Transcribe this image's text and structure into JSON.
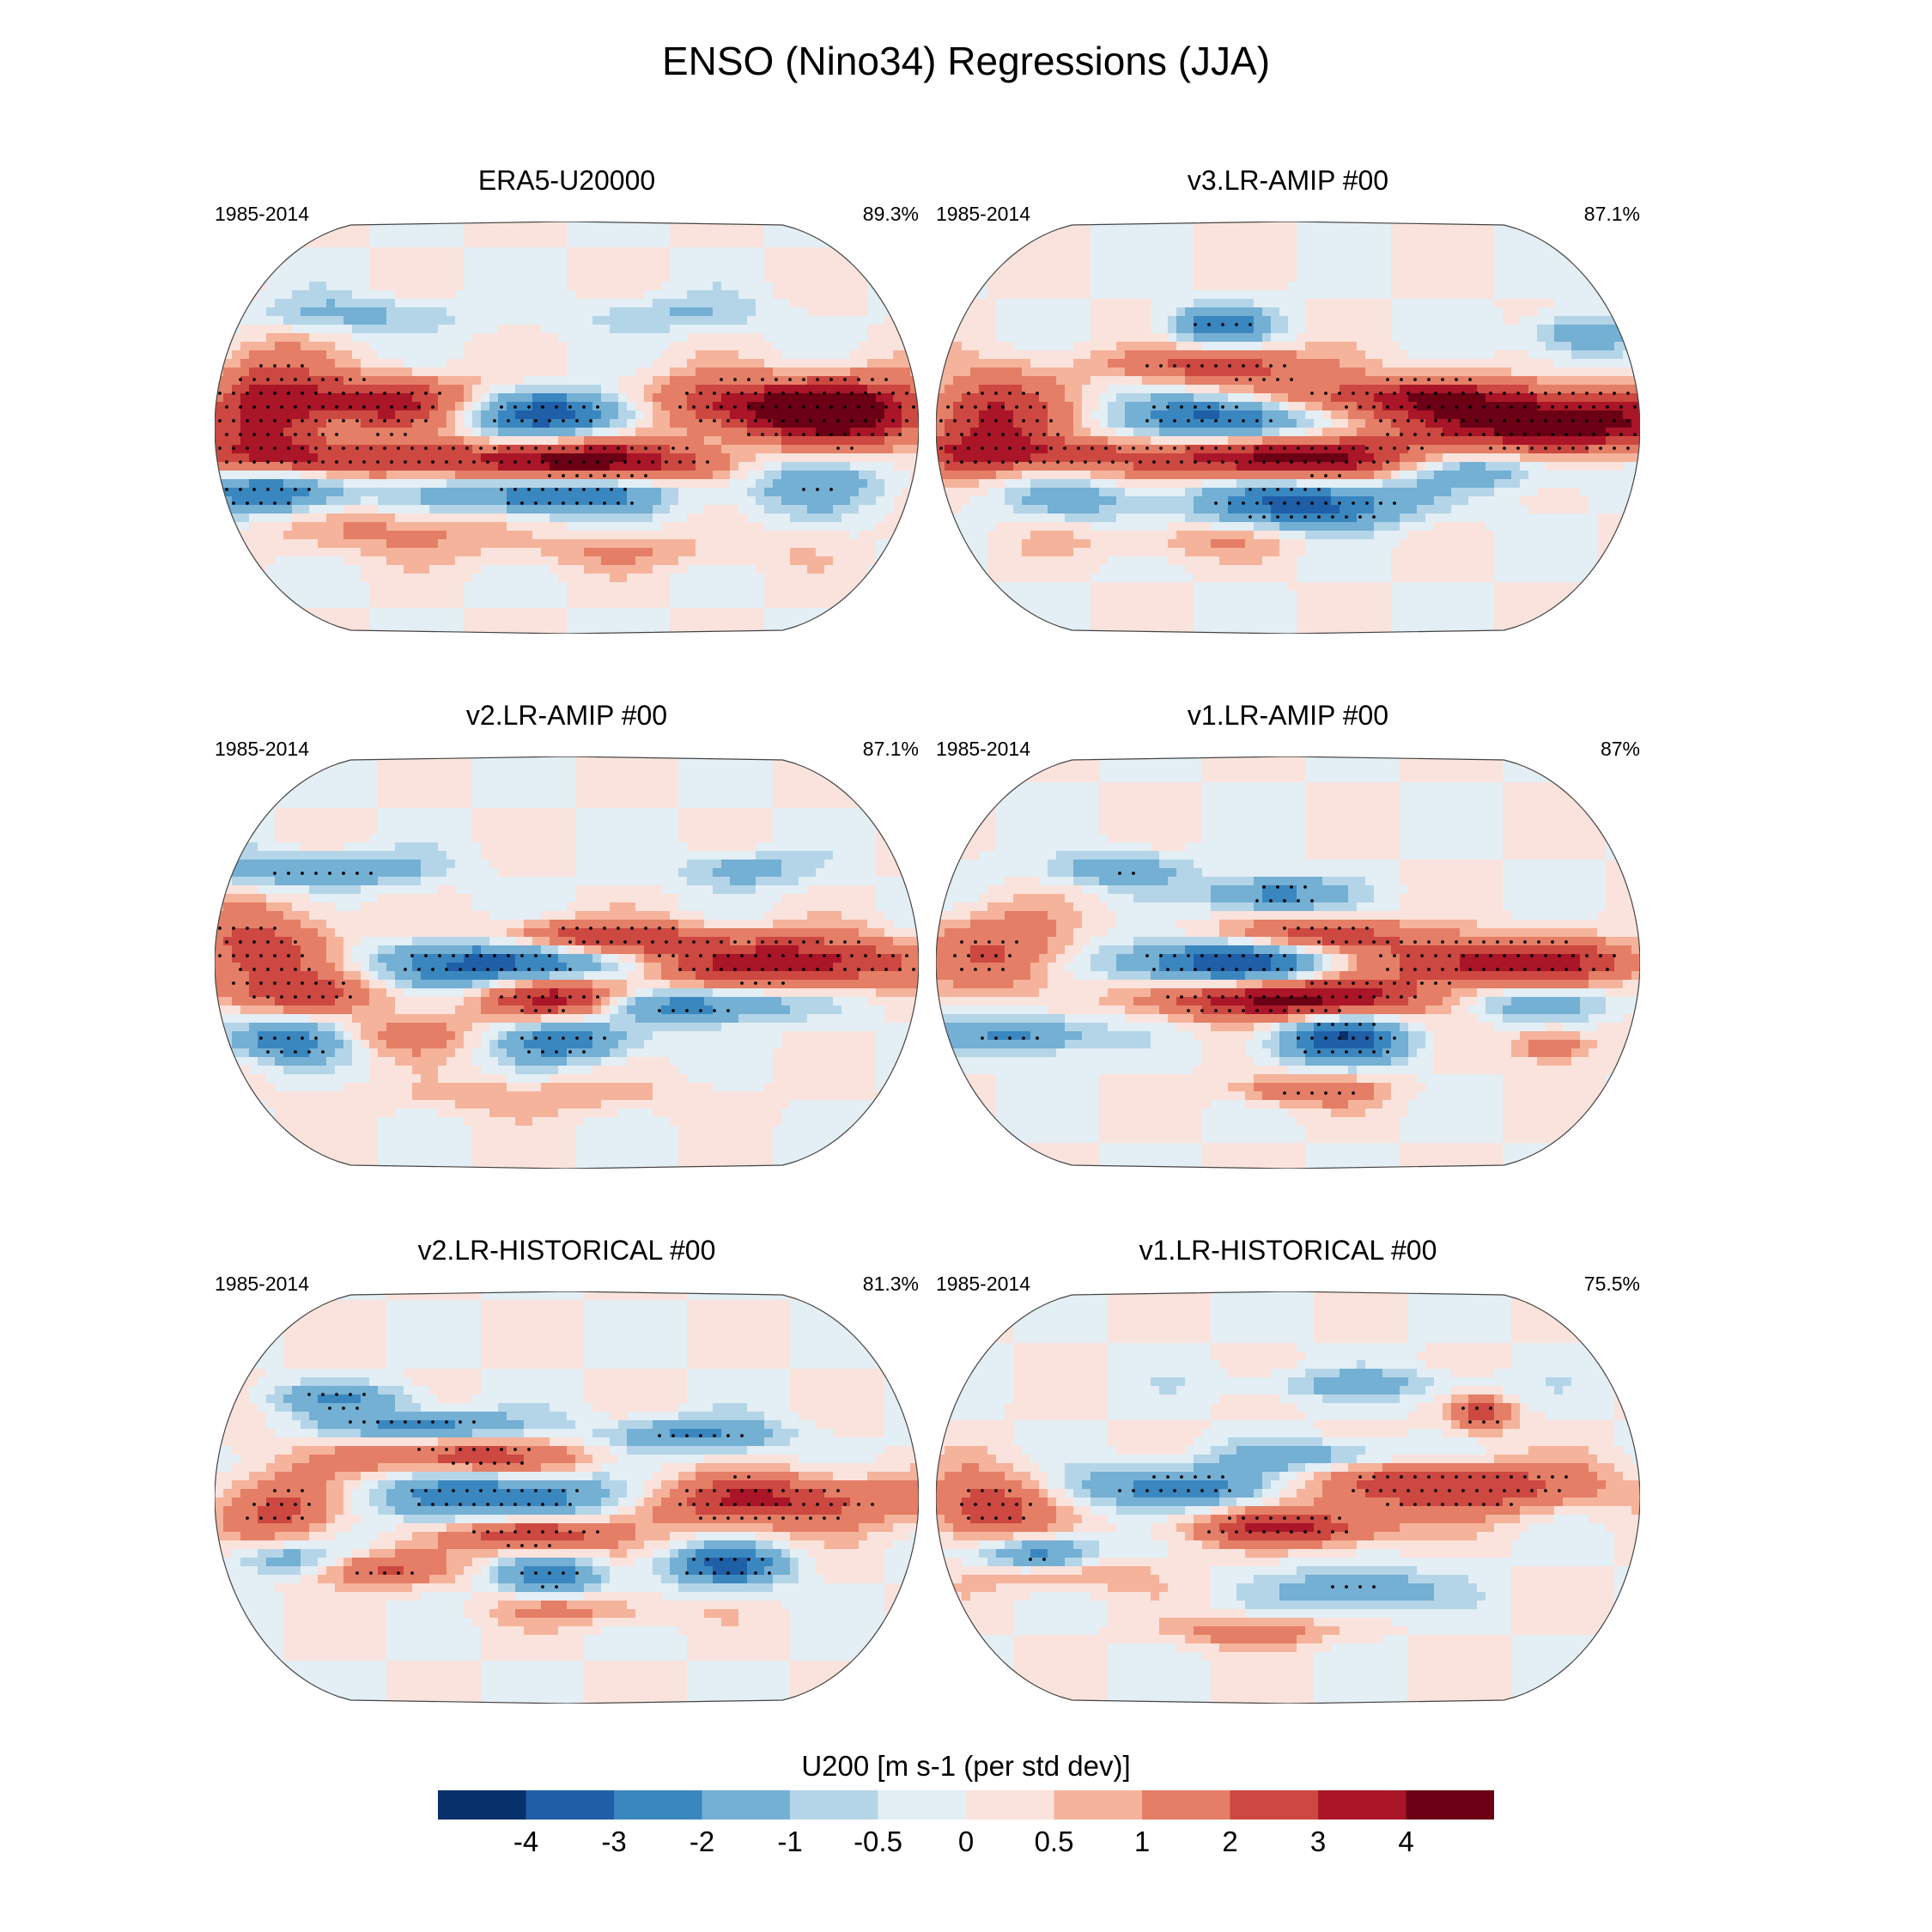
{
  "figure": {
    "title": "ENSO (Nino34) Regressions (JJA)"
  },
  "panels": [
    {
      "title": "ERA5-U20000",
      "period": "1985-2014",
      "correlation": "89.3%",
      "pattern": 0
    },
    {
      "title": "v3.LR-AMIP  #00",
      "period": "1985-2014",
      "correlation": "87.1%",
      "pattern": 1
    },
    {
      "title": "v2.LR-AMIP  #00",
      "period": "1985-2014",
      "correlation": "87.1%",
      "pattern": 2
    },
    {
      "title": "v1.LR-AMIP  #00",
      "period": "1985-2014",
      "correlation": "87%",
      "pattern": 3
    },
    {
      "title": "v2.LR-HISTORICAL  #00",
      "period": "1985-2014",
      "correlation": "81.3%",
      "pattern": 4
    },
    {
      "title": "v1.LR-HISTORICAL  #00",
      "period": "1985-2014",
      "correlation": "75.5%",
      "pattern": 5
    }
  ],
  "colorbar": {
    "label": "U200 [m s-1 (per std dev)]",
    "ticks": [
      "-4",
      "-3",
      "-2",
      "-1",
      "-0.5",
      "0",
      "0.5",
      "1",
      "2",
      "3",
      "4"
    ],
    "levels": [
      -4,
      -3,
      -2,
      -1,
      -0.5,
      0,
      0.5,
      1,
      2,
      3,
      4
    ],
    "colors": [
      "#08306b",
      "#1f5fa8",
      "#3a87c0",
      "#74afd4",
      "#b4d5e8",
      "#e3eef5",
      "#fae3dc",
      "#f5b39b",
      "#e57e66",
      "#cc4840",
      "#aa1528",
      "#6b0014"
    ]
  }
}
